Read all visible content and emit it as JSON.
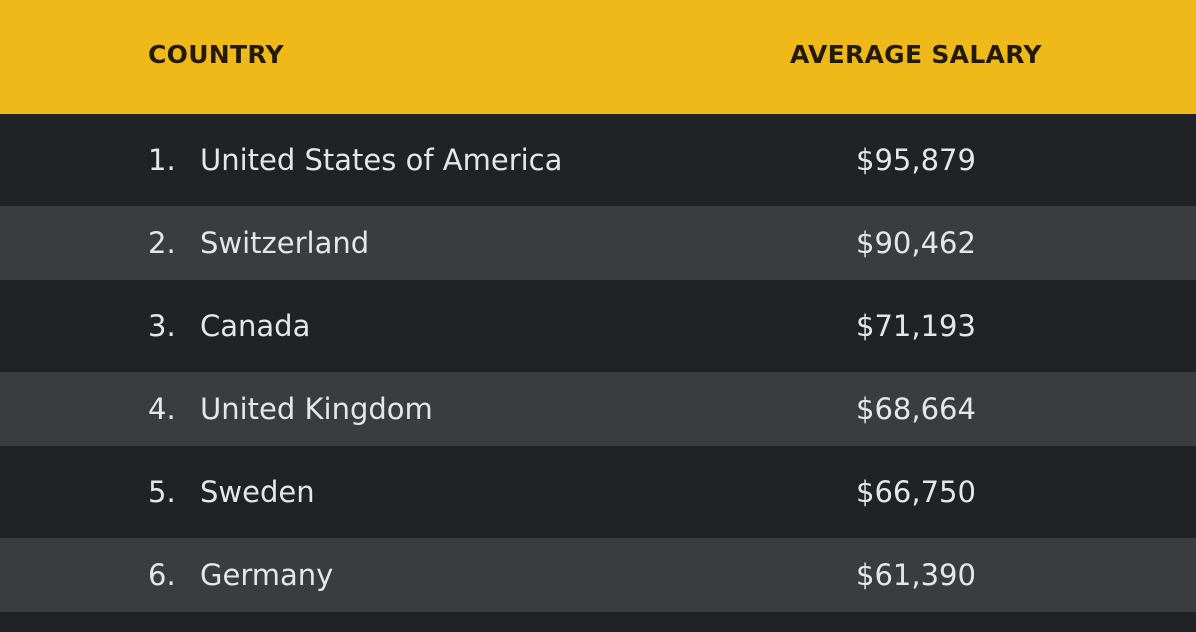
{
  "chart_data": {
    "type": "table",
    "columns": [
      "COUNTRY",
      "AVERAGE SALARY"
    ],
    "rows": [
      {
        "rank": "1.",
        "country": "United States of America",
        "salary": "$95,879"
      },
      {
        "rank": "2.",
        "country": "Switzerland",
        "salary": "$90,462"
      },
      {
        "rank": "3.",
        "country": "Canada",
        "salary": "$71,193"
      },
      {
        "rank": "4.",
        "country": "United Kingdom",
        "salary": "$68,664"
      },
      {
        "rank": "5.",
        "country": "Sweden",
        "salary": "$66,750"
      },
      {
        "rank": "6.",
        "country": "Germany",
        "salary": "$61,390"
      }
    ]
  },
  "colors": {
    "header_bg": "#f0b91a",
    "row_dark": "#202226",
    "row_light": "#3a3c40",
    "text_light": "#e6e6e6",
    "header_text": "#241a08"
  }
}
